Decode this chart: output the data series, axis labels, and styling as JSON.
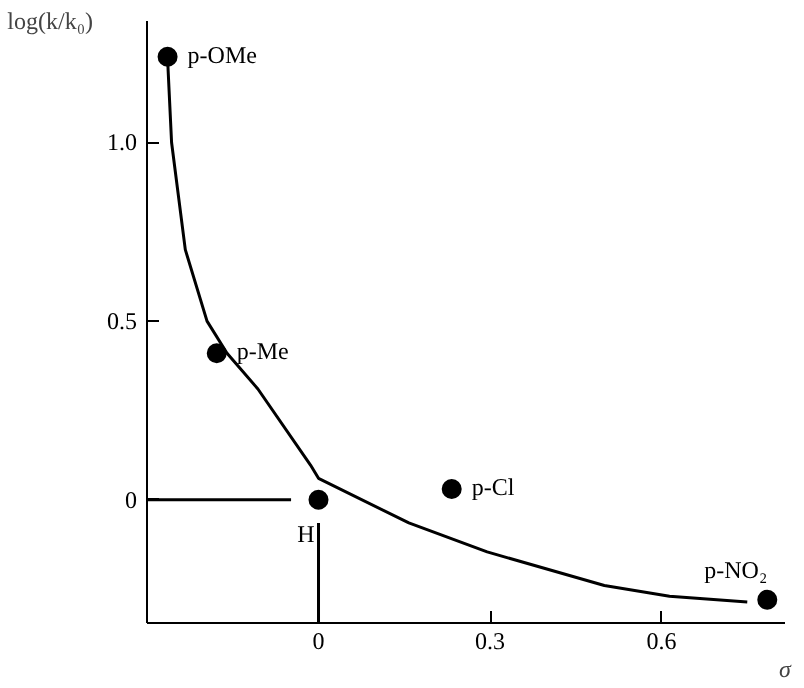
{
  "chart_data": {
    "type": "scatter",
    "xlabel": "σ",
    "ylabel": "log(k/k₀)",
    "xlim": [
      -0.3,
      0.816
    ],
    "ylim": [
      -0.345,
      1.34
    ],
    "xticks": [
      0,
      0.3,
      0.6
    ],
    "yticks": [
      0,
      0.5,
      {
        "value": 1.0,
        "label": "1.0"
      }
    ],
    "grid": false,
    "series": [
      {
        "type": "line",
        "color": "#000000",
        "marker": "none",
        "x": [
          -0.264,
          -0.263,
          -0.257,
          -0.233,
          -0.195,
          -0.16,
          -0.106,
          -0.014,
          0,
          0.158,
          0.295,
          0.5,
          0.614,
          0.75
        ],
        "values": [
          1.24,
          1.2,
          1.0,
          0.7,
          0.5,
          0.41,
          0.31,
          0.097,
          0.06,
          -0.065,
          -0.146,
          -0.24,
          -0.27,
          -0.286
        ]
      },
      {
        "type": "line",
        "color": "#000000",
        "marker": "none",
        "x": [
          -0.3,
          -0.048,
          null,
          0,
          0
        ],
        "values": [
          0,
          0,
          null,
          -0.065,
          -0.345
        ]
      },
      {
        "type": "scatter",
        "color": "#000000",
        "marker": "circle",
        "x": [
          -0.264,
          -0.178,
          0,
          0.233,
          0.785
        ],
        "values": [
          1.24,
          0.41,
          0,
          0.03,
          -0.28
        ]
      }
    ],
    "annotations": [
      {
        "text": "p-OMe",
        "x": -0.264,
        "y": 1.24
      },
      {
        "text": "p-Me",
        "x": -0.178,
        "y": 0.41
      },
      {
        "text": "H",
        "x": 0,
        "y": 0
      },
      {
        "text": "p-Cl",
        "x": 0.233,
        "y": 0.03
      },
      {
        "text": "p-NO₂",
        "x": 0.785,
        "y": -0.28
      }
    ]
  }
}
